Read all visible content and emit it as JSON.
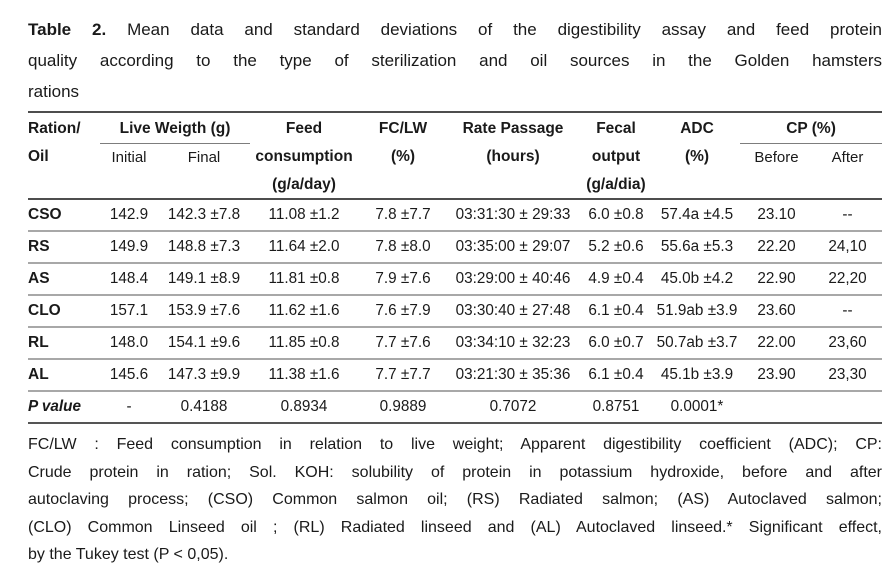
{
  "colors": {
    "text": "#1a1a1a",
    "rule_heavy": "#4d4d4d",
    "rule_light": "#a8a8a8",
    "background": "#ffffff"
  },
  "caption": {
    "label": "Table 2.",
    "line1": "Mean data and standard deviations of the digestibility assay and feed protein",
    "line2": "quality according to the type of sterilization and oil sources in the Golden hamsters",
    "line3": "rations"
  },
  "table": {
    "header": {
      "ration": "Ration/",
      "oil": "Oil",
      "live_weight": "Live Weigth (g)",
      "initial": "Initial",
      "final": "Final",
      "feed1": "Feed",
      "feed2": "consumption",
      "feed3": "(g/a/day)",
      "fclw1": "FC/LW",
      "fclw2": "(%)",
      "rate1": "Rate Passage",
      "rate2": "(hours)",
      "fecal1": "Fecal",
      "fecal2": "output",
      "fecal3": "(g/a/dia)",
      "adc1": "ADC",
      "adc2": "(%)",
      "cp": "CP (%)",
      "before": "Before",
      "after": "After"
    },
    "rows": [
      {
        "ration": "CSO",
        "initial": "142.9",
        "final": "142.3 ±7.8",
        "feed": "11.08 ±1.2",
        "fclw": "7.8 ±7.7",
        "rate": "03:31:30 ± 29:33",
        "fecal": "6.0 ±0.8",
        "adc": "57.4a ±4.5",
        "cp_before": "23.10",
        "cp_after": "--"
      },
      {
        "ration": "RS",
        "initial": "149.9",
        "final": "148.8 ±7.3",
        "feed": "11.64 ±2.0",
        "fclw": "7.8 ±8.0",
        "rate": "03:35:00 ± 29:07",
        "fecal": "5.2 ±0.6",
        "adc": "55.6a ±5.3",
        "cp_before": "22.20",
        "cp_after": "24,10"
      },
      {
        "ration": "AS",
        "initial": "148.4",
        "final": "149.1 ±8.9",
        "feed": "11.81 ±0.8",
        "fclw": "7.9 ±7.6",
        "rate": "03:29:00 ± 40:46",
        "fecal": "4.9 ±0.4",
        "adc": "45.0b ±4.2",
        "cp_before": "22.90",
        "cp_after": "22,20"
      },
      {
        "ration": "CLO",
        "initial": "157.1",
        "final": "153.9 ±7.6",
        "feed": "11.62 ±1.6",
        "fclw": "7.6 ±7.9",
        "rate": "03:30:40 ± 27:48",
        "fecal": "6.1 ±0.4",
        "adc": "51.9ab ±3.9",
        "cp_before": "23.60",
        "cp_after": "--"
      },
      {
        "ration": "RL",
        "initial": "148.0",
        "final": "154.1 ±9.6",
        "feed": "11.85 ±0.8",
        "fclw": "7.7 ±7.6",
        "rate": "03:34:10 ± 32:23",
        "fecal": "6.0 ±0.7",
        "adc": "50.7ab ±3.7",
        "cp_before": "22.00",
        "cp_after": "23,60"
      },
      {
        "ration": "AL",
        "initial": "145.6",
        "final": "147.3 ±9.9",
        "feed": "11.38 ±1.6",
        "fclw": "7.7 ±7.7",
        "rate": "03:21:30 ± 35:36",
        "fecal": "6.1 ±0.4",
        "adc": "45.1b ±3.9",
        "cp_before": "23.90",
        "cp_after": "23,30"
      }
    ],
    "p_row": {
      "label": "P value",
      "initial": "-",
      "final": "0.4188",
      "feed": "0.8934",
      "fclw": "0.9889",
      "rate": "0.7072",
      "fecal": "0.8751",
      "adc": "0.0001*",
      "cp_before": "",
      "cp_after": ""
    }
  },
  "footnote": {
    "lines": [
      "FC/LW : Feed consumption in relation to live weight; Apparent digestibility coefficient (ADC); CP:",
      "Crude protein in ration; Sol. KOH: solubility of protein in potassium hydroxide, before and after",
      "autoclaving process; (CSO) Common salmon oil; (RS) Radiated salmon; (AS) Autoclaved salmon;",
      "(CLO) Common Linseed oil ; (RL) Radiated linseed and (AL) Autoclaved linseed.* Significant effect,",
      "by the Tukey test (P < 0,05)."
    ]
  }
}
